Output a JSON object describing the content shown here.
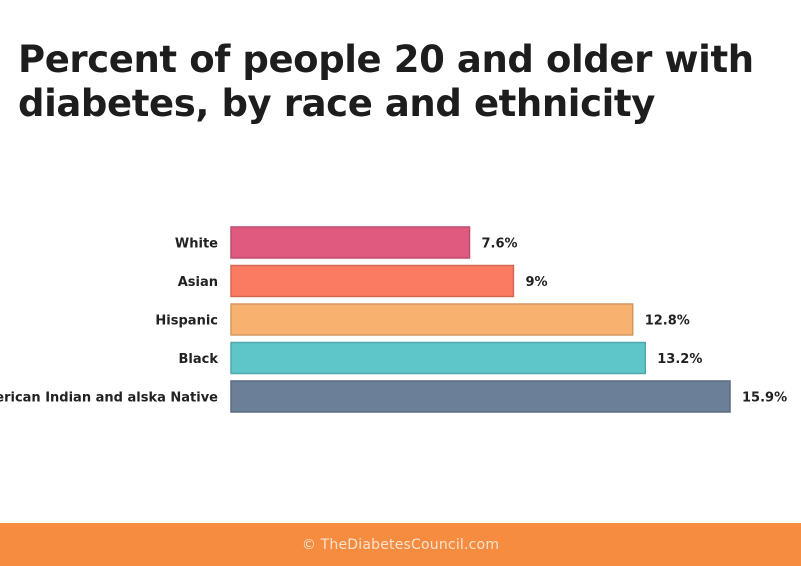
{
  "chart_data": {
    "type": "bar",
    "orientation": "horizontal",
    "title": "Percent of people 20 and older with diabetes, by race and ethnicity",
    "categories": [
      "White",
      "Asian",
      "Hispanic",
      "Black",
      "American Indian and alska Native"
    ],
    "values": [
      7.6,
      9,
      12.8,
      13.2,
      15.9
    ],
    "value_labels": [
      "7.6%",
      "9%",
      "12.8%",
      "13.2%",
      "15.9%"
    ],
    "colors": [
      "#e05a80",
      "#fa7a62",
      "#f8b26f",
      "#5ec6c8",
      "#6c7f99"
    ],
    "xlim": [
      0,
      15.9
    ],
    "grid": false,
    "legend": "none"
  },
  "footer": {
    "credit": "© TheDiabetesCouncil.com"
  }
}
